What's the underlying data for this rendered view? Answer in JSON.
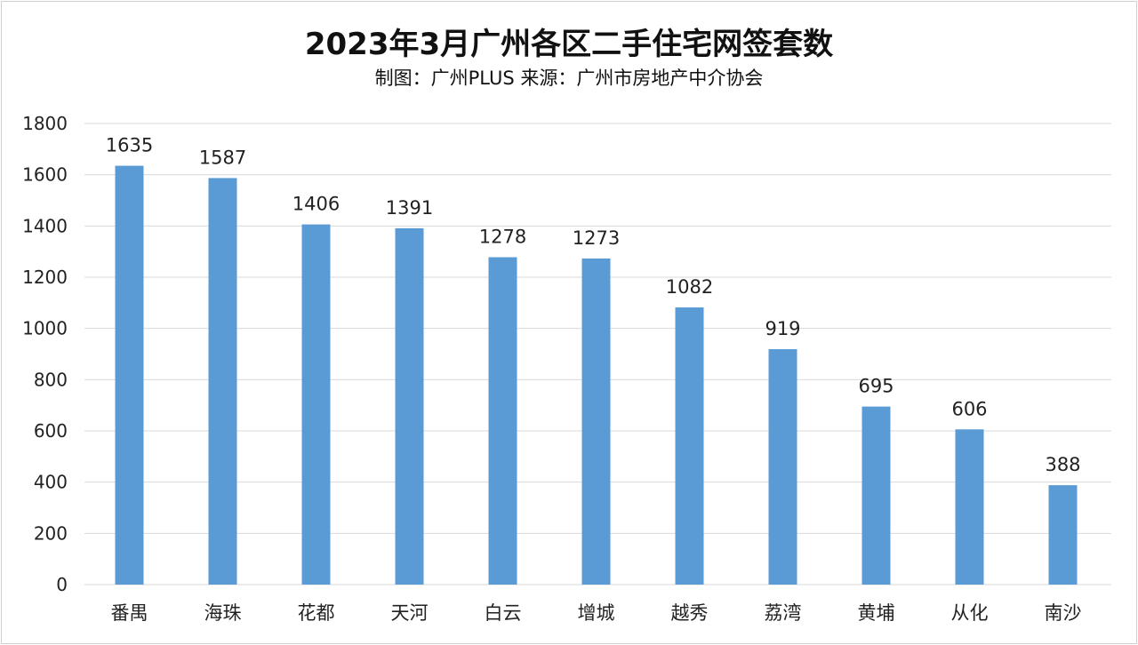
{
  "chart_data": {
    "type": "bar",
    "title": "2023年3月广州各区二手住宅网签套数",
    "subtitle": "制图：广州PLUS  来源：广州市房地产中介协会",
    "categories": [
      "番禺",
      "海珠",
      "花都",
      "天河",
      "白云",
      "增城",
      "越秀",
      "荔湾",
      "黄埔",
      "从化",
      "南沙"
    ],
    "values": [
      1635,
      1587,
      1406,
      1391,
      1278,
      1273,
      1082,
      919,
      695,
      606,
      388
    ],
    "xlabel": "",
    "ylabel": "",
    "ylim": [
      0,
      1800
    ],
    "yticks": [
      0,
      200,
      400,
      600,
      800,
      1000,
      1200,
      1400,
      1600,
      1800
    ],
    "grid": true,
    "data_labels": true,
    "bar_color": "#5b9bd5"
  }
}
